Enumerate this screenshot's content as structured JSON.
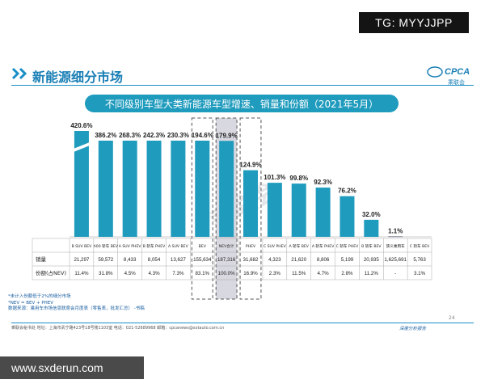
{
  "badge": "TG: MYYJJPP",
  "header": {
    "title": "新能源细分市场",
    "logo": "CPCA",
    "logo_sub": "乘联会"
  },
  "banner": "不同级别车型大类新能源车型增速、销量和份额（2021年5月）",
  "watermark": "乘联会",
  "chart_data": {
    "type": "bar",
    "categories": [
      "B SUV BEV",
      "A00 轿车 BEV",
      "A SUV PHEV",
      "B 轿车 PHEV",
      "A SUV BEV",
      "BEV",
      "NEV合计",
      "PHEV",
      "C SUV PHEV",
      "A 轿车 BEV",
      "A 轿车 PHEV",
      "C 轿车 PHEV",
      "B 轿车 BEV",
      "狭义乘用车",
      "C 轿车 BEV"
    ],
    "values": [
      420.6,
      386.2,
      268.3,
      242.3,
      230.3,
      194.6,
      179.9,
      124.9,
      101.3,
      99.8,
      92.3,
      76.2,
      32.0,
      1.1,
      null
    ],
    "value_labels": [
      "420.6%",
      "386.2%",
      "268.3%",
      "242.3%",
      "230.3%",
      "194.6%",
      "179.9%",
      "124.9%",
      "101.3%",
      "99.8%",
      "92.3%",
      "76.2%",
      "32.0%",
      "1.1%",
      ""
    ],
    "highlight": [
      "BEV",
      "NEV合计",
      "PHEV"
    ],
    "ylabel": "",
    "colors": {
      "bar": "#1f9bbd",
      "nev_bar": "#1f9bbd",
      "total_bar": "#7a7f8c",
      "highlight_fill": "#d8d8e0"
    }
  },
  "table": {
    "row_labels": [
      "销量",
      "份额(占NEV)"
    ],
    "sales": [
      "21,297",
      "59,572",
      "8,433",
      "8,054",
      "13,627",
      "155,634",
      "187,316",
      "31,682",
      "4,323",
      "21,620",
      "8,806",
      "5,199",
      "20,935",
      "1,625,691",
      "5,763"
    ],
    "share": [
      "11.4%",
      "31.8%",
      "4.5%",
      "4.3%",
      "7.3%",
      "83.1%",
      "100.0%",
      "16.9%",
      "2.3%",
      "11.5%",
      "4.7%",
      "2.8%",
      "11.2%",
      "-",
      "3.1%"
    ]
  },
  "footnotes": {
    "line1": "*未计入份额低于2%的细分市场",
    "line2": "*NEV = BEV + PHEV",
    "line3": "数据来源：乘用车市场信息联席会月度表（零售表，批发汇总）    -书稿"
  },
  "page_number": "24",
  "footer": {
    "left": "乘联会秘书处    地址：上海市武宁路423号18号楼1103室    电话：021-52689968    邮箱：cpcanews@sxtauto.com.cn",
    "right": "深度分析报告"
  },
  "site": "www.sxderun.com"
}
